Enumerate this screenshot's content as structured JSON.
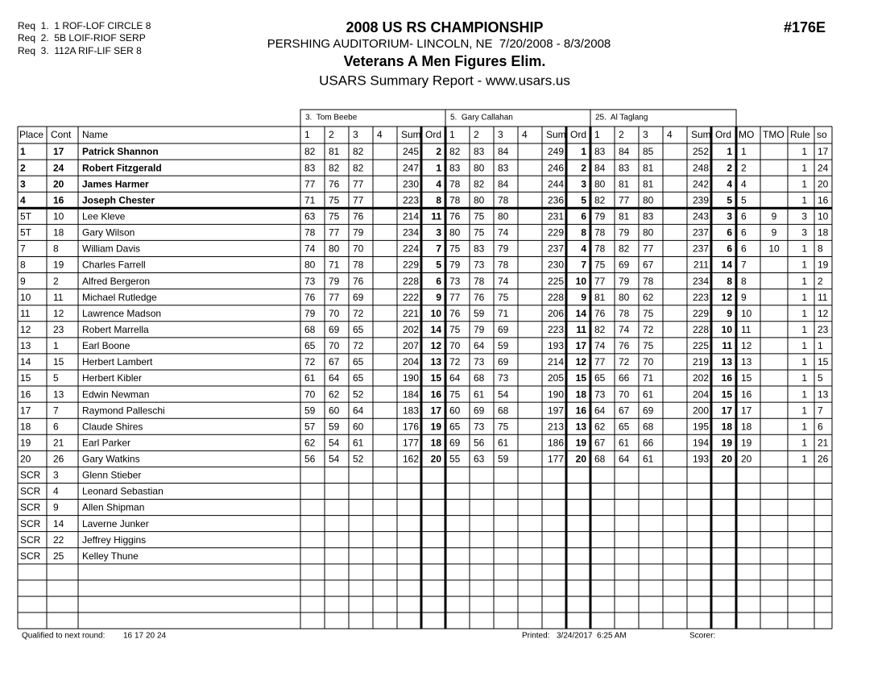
{
  "header": {
    "requirements": [
      "Req  1.  1 ROF-LOF CIRCLE 8",
      "Req  2.  5B LOIF-RIOF SERP",
      "Req  3.  112A RIF-LIF SER 8"
    ],
    "title": "2008 US RS CHAMPIONSHIP",
    "location": "PERSHING AUDITORIUM- LINCOLN, NE  7/20/2008 - 8/3/2008",
    "event": "Veterans A Men Figures Elim.",
    "report": "USARS Summary Report - www.usars.us",
    "event_code": "#176E"
  },
  "table": {
    "judges": [
      "3.  Tom Beebe",
      "5.  Gary Callahan",
      "25.  Al Taglang"
    ],
    "columns": {
      "place": "Place",
      "cont": "Cont",
      "name": "Name",
      "judge": [
        "1",
        "2",
        "3",
        "4",
        "Sum",
        "Ord"
      ],
      "mo": "MO",
      "tmo": "TMO",
      "rule": "Rule",
      "so": "so"
    },
    "rows": [
      {
        "place": "1",
        "cont": 17,
        "name": "Patrick Shannon",
        "scores": [
          [
            82,
            81,
            82,
            245,
            2
          ],
          [
            82,
            83,
            84,
            249,
            1
          ],
          [
            83,
            84,
            85,
            252,
            1
          ]
        ],
        "mo": 1,
        "rule": 1,
        "so": 17
      },
      {
        "place": "2",
        "cont": 24,
        "name": "Robert Fitzgerald",
        "scores": [
          [
            83,
            82,
            82,
            247,
            1
          ],
          [
            83,
            80,
            83,
            246,
            2
          ],
          [
            84,
            83,
            81,
            248,
            2
          ]
        ],
        "mo": 2,
        "rule": 1,
        "so": 24
      },
      {
        "place": "3",
        "cont": 20,
        "name": "James Harmer",
        "scores": [
          [
            77,
            76,
            77,
            230,
            4
          ],
          [
            78,
            82,
            84,
            244,
            3
          ],
          [
            80,
            81,
            81,
            242,
            4
          ]
        ],
        "mo": 4,
        "rule": 1,
        "so": 20
      },
      {
        "place": "4",
        "cont": 16,
        "name": "Joseph Chester",
        "scores": [
          [
            71,
            75,
            77,
            223,
            8
          ],
          [
            78,
            80,
            78,
            236,
            5
          ],
          [
            82,
            77,
            80,
            239,
            5
          ]
        ],
        "mo": 5,
        "rule": 1,
        "so": 16
      },
      {
        "place": "5T",
        "cont": 10,
        "name": "Lee Kleve",
        "scores": [
          [
            63,
            75,
            76,
            214,
            11
          ],
          [
            76,
            75,
            80,
            231,
            6
          ],
          [
            79,
            81,
            83,
            243,
            3
          ]
        ],
        "mo": 6,
        "tmo": 9,
        "rule": 3,
        "so": 10
      },
      {
        "place": "5T",
        "cont": 18,
        "name": "Gary Wilson",
        "scores": [
          [
            78,
            77,
            79,
            234,
            3
          ],
          [
            80,
            75,
            74,
            229,
            8
          ],
          [
            78,
            79,
            80,
            237,
            6
          ]
        ],
        "mo": 6,
        "tmo": 9,
        "rule": 3,
        "so": 18
      },
      {
        "place": "7",
        "cont": 8,
        "name": "William Davis",
        "scores": [
          [
            74,
            80,
            70,
            224,
            7
          ],
          [
            75,
            83,
            79,
            237,
            4
          ],
          [
            78,
            82,
            77,
            237,
            6
          ]
        ],
        "mo": 6,
        "tmo": 10,
        "rule": 1,
        "so": 8
      },
      {
        "place": "8",
        "cont": 19,
        "name": "Charles Farrell",
        "scores": [
          [
            80,
            71,
            78,
            229,
            5
          ],
          [
            79,
            73,
            78,
            230,
            7
          ],
          [
            75,
            69,
            67,
            211,
            14
          ]
        ],
        "mo": 7,
        "rule": 1,
        "so": 19
      },
      {
        "place": "9",
        "cont": 2,
        "name": "Alfred Bergeron",
        "scores": [
          [
            73,
            79,
            76,
            228,
            6
          ],
          [
            73,
            78,
            74,
            225,
            10
          ],
          [
            77,
            79,
            78,
            234,
            8
          ]
        ],
        "mo": 8,
        "rule": 1,
        "so": 2
      },
      {
        "place": "10",
        "cont": 11,
        "name": "Michael Rutledge",
        "scores": [
          [
            76,
            77,
            69,
            222,
            9
          ],
          [
            77,
            76,
            75,
            228,
            9
          ],
          [
            81,
            80,
            62,
            223,
            12
          ]
        ],
        "mo": 9,
        "rule": 1,
        "so": 11
      },
      {
        "place": "11",
        "cont": 12,
        "name": "Lawrence Madson",
        "scores": [
          [
            79,
            70,
            72,
            221,
            10
          ],
          [
            76,
            59,
            71,
            206,
            14
          ],
          [
            76,
            78,
            75,
            229,
            9
          ]
        ],
        "mo": 10,
        "rule": 1,
        "so": 12
      },
      {
        "place": "12",
        "cont": 23,
        "name": "Robert Marrella",
        "scores": [
          [
            68,
            69,
            65,
            202,
            14
          ],
          [
            75,
            79,
            69,
            223,
            11
          ],
          [
            82,
            74,
            72,
            228,
            10
          ]
        ],
        "mo": 11,
        "rule": 1,
        "so": 23
      },
      {
        "place": "13",
        "cont": 1,
        "name": "Earl Boone",
        "scores": [
          [
            65,
            70,
            72,
            207,
            12
          ],
          [
            70,
            64,
            59,
            193,
            17
          ],
          [
            74,
            76,
            75,
            225,
            11
          ]
        ],
        "mo": 12,
        "rule": 1,
        "so": 1
      },
      {
        "place": "14",
        "cont": 15,
        "name": "Herbert Lambert",
        "scores": [
          [
            72,
            67,
            65,
            204,
            13
          ],
          [
            72,
            73,
            69,
            214,
            12
          ],
          [
            77,
            72,
            70,
            219,
            13
          ]
        ],
        "mo": 13,
        "rule": 1,
        "so": 15
      },
      {
        "place": "15",
        "cont": 5,
        "name": "Herbert Kibler",
        "scores": [
          [
            61,
            64,
            65,
            190,
            15
          ],
          [
            64,
            68,
            73,
            205,
            15
          ],
          [
            65,
            66,
            71,
            202,
            16
          ]
        ],
        "mo": 15,
        "rule": 1,
        "so": 5
      },
      {
        "place": "16",
        "cont": 13,
        "name": "Edwin Newman",
        "scores": [
          [
            70,
            62,
            52,
            184,
            16
          ],
          [
            75,
            61,
            54,
            190,
            18
          ],
          [
            73,
            70,
            61,
            204,
            15
          ]
        ],
        "mo": 16,
        "rule": 1,
        "so": 13
      },
      {
        "place": "17",
        "cont": 7,
        "name": "Raymond Palleschi",
        "scores": [
          [
            59,
            60,
            64,
            183,
            17
          ],
          [
            60,
            69,
            68,
            197,
            16
          ],
          [
            64,
            67,
            69,
            200,
            17
          ]
        ],
        "mo": 17,
        "rule": 1,
        "so": 7
      },
      {
        "place": "18",
        "cont": 6,
        "name": "Claude Shires",
        "scores": [
          [
            57,
            59,
            60,
            176,
            19
          ],
          [
            65,
            73,
            75,
            213,
            13
          ],
          [
            62,
            65,
            68,
            195,
            18
          ]
        ],
        "mo": 18,
        "rule": 1,
        "so": 6
      },
      {
        "place": "19",
        "cont": 21,
        "name": "Earl Parker",
        "scores": [
          [
            62,
            54,
            61,
            177,
            18
          ],
          [
            69,
            56,
            61,
            186,
            19
          ],
          [
            67,
            61,
            66,
            194,
            19
          ]
        ],
        "mo": 19,
        "rule": 1,
        "so": 21
      },
      {
        "place": "20",
        "cont": 26,
        "name": "Gary Watkins",
        "scores": [
          [
            56,
            54,
            52,
            162,
            20
          ],
          [
            55,
            63,
            59,
            177,
            20
          ],
          [
            68,
            64,
            61,
            193,
            20
          ]
        ],
        "mo": 20,
        "rule": 1,
        "so": 26
      },
      {
        "place": "SCR",
        "cont": 3,
        "name": "Glenn Stieber"
      },
      {
        "place": "SCR",
        "cont": 4,
        "name": "Leonard Sebastian"
      },
      {
        "place": "SCR",
        "cont": 9,
        "name": "Allen Shipman"
      },
      {
        "place": "SCR",
        "cont": 14,
        "name": "Laverne Junker"
      },
      {
        "place": "SCR",
        "cont": 22,
        "name": "Jeffrey Higgins"
      },
      {
        "place": "SCR",
        "cont": 25,
        "name": "Kelley Thune"
      }
    ]
  },
  "footer": {
    "qualified_label": "Qualified to next round:",
    "qualified": [
      16,
      17,
      20,
      24
    ],
    "printed_label": "Printed:",
    "printed": "3/24/2017  6:25 AM",
    "scorer": "Scorer:"
  }
}
